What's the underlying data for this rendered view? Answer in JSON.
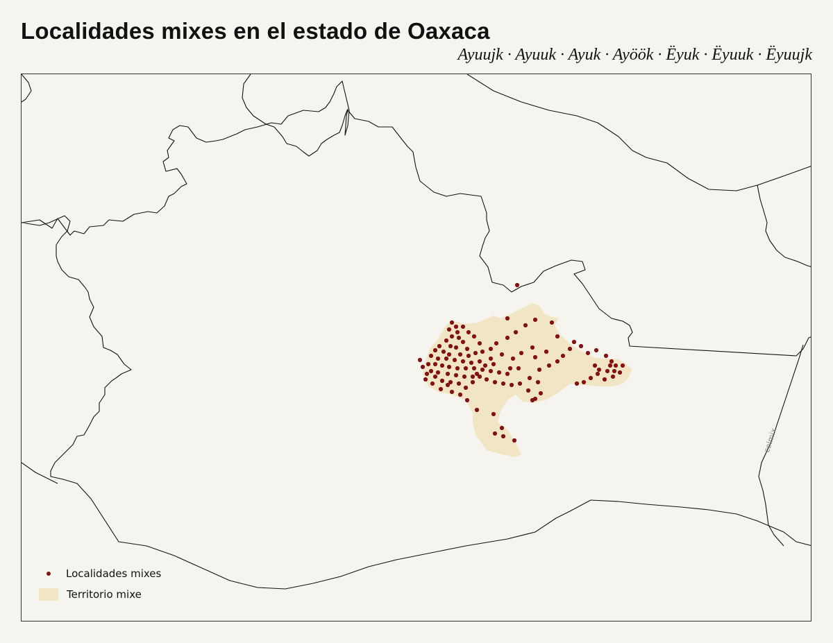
{
  "title": "Localidades mixes en el estado de Oaxaca",
  "subtitle": "Ayuujk · Ayuuk · Ayuk · Ayöök · Ëyuk · Ëyuuk · Ëyuujk",
  "credit": "colmix",
  "colors": {
    "background": "#f6f4ef",
    "border": "#111111",
    "territory": "#f1e5c6",
    "locality": "#7d1416"
  },
  "legend": {
    "localities_label": "Localidades mixes",
    "territory_label": "Territorio mixe"
  }
}
